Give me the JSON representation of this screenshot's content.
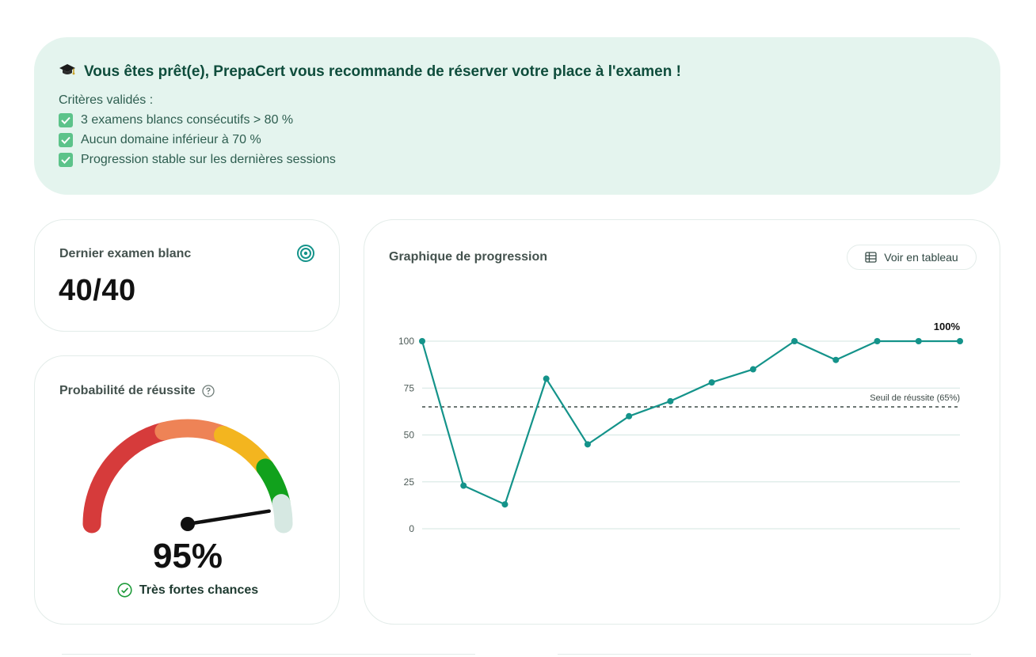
{
  "banner": {
    "icon": "graduation-cap-icon",
    "title": "Vous êtes prêt(e), PrepaCert vous recommande de réserver votre place à l'examen !",
    "criteria_heading": "Critères validés :",
    "criteria": [
      "3 examens blancs consécutifs > 80 %",
      "Aucun domaine inférieur à 70 %",
      "Progression stable sur les dernières sessions"
    ]
  },
  "last_exam": {
    "label": "Dernier examen blanc",
    "score": "40/40",
    "icon": "target-icon"
  },
  "probability": {
    "label": "Probabilité de réussite",
    "value_text": "95%",
    "value": 95,
    "status": "Très fortes chances",
    "gauge_colors": [
      "#d63b3b",
      "#ee8356",
      "#f3b51f",
      "#11a11c",
      "#d6e8e2"
    ]
  },
  "graph": {
    "title": "Graphique de progression",
    "table_button": "Voir en tableau",
    "accent": "#14938a"
  },
  "chart_data": {
    "type": "line",
    "x": [
      1,
      2,
      3,
      4,
      5,
      6,
      7,
      8,
      9,
      10,
      11,
      12,
      13,
      14
    ],
    "series": [
      {
        "values": [
          100,
          23,
          13,
          80,
          45,
          60,
          68,
          78,
          85,
          100,
          90,
          100,
          100,
          100
        ]
      }
    ],
    "ylim": [
      0,
      100
    ],
    "yticks": [
      "100",
      "75",
      "50",
      "25",
      "0"
    ],
    "threshold": {
      "value": 65,
      "label": "Seuil de réussite (65%)"
    },
    "last_label": "100%",
    "grid": true
  }
}
